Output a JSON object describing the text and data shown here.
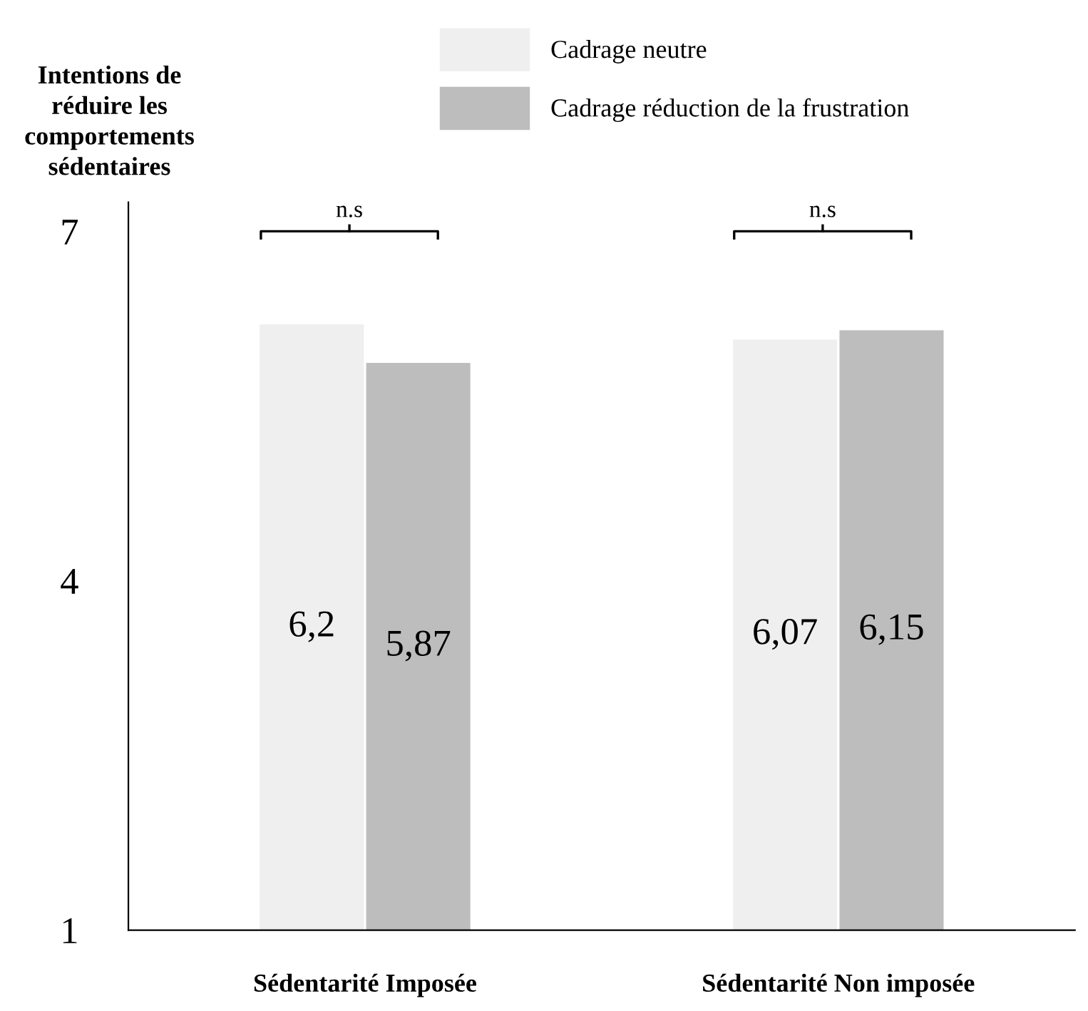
{
  "chart_data": {
    "type": "bar",
    "ylabel": "Intentions de\nréduire les\ncomportements\nsédentaires",
    "categories": [
      "Sédentarité Imposée",
      "Sédentarité Non imposée"
    ],
    "series": [
      {
        "name": "Cadrage neutre",
        "color": "#efefef",
        "values": [
          6.2,
          6.07
        ],
        "value_labels": [
          "6,2",
          "6,07"
        ]
      },
      {
        "name": "Cadrage réduction de la frustration",
        "color": "#bdbdbd",
        "values": [
          5.87,
          6.15
        ],
        "value_labels": [
          "5,87",
          "6,15"
        ]
      }
    ],
    "ylim": [
      1,
      7.25
    ],
    "yticks": [
      1,
      4,
      7
    ],
    "grid": false,
    "legend": "top",
    "annotations": [
      "n.s",
      "n.s"
    ]
  }
}
